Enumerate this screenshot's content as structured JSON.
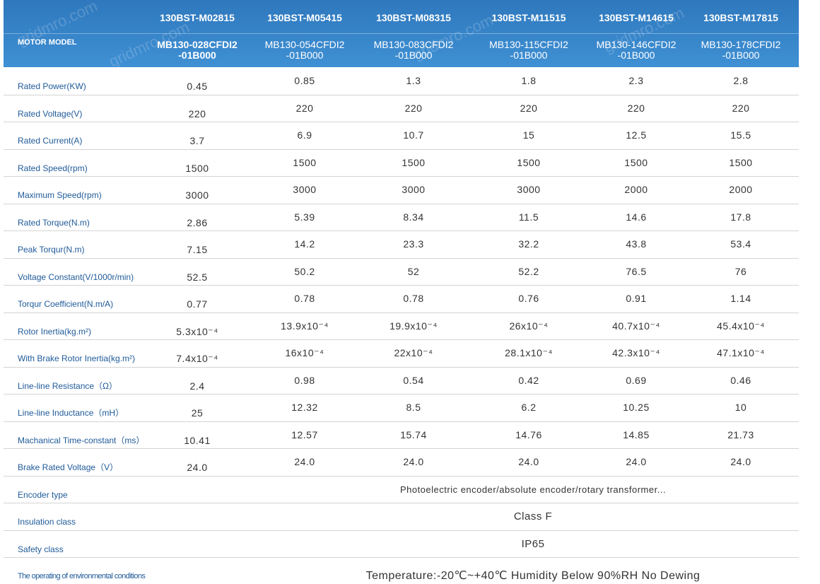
{
  "watermark": "gridmro.com",
  "header": {
    "label": "MOTOR MODEL",
    "models": [
      "130BST-M02815",
      "130BST-M05415",
      "130BST-M08315",
      "130BST-M11515",
      "130BST-M14615",
      "130BST-M17815"
    ],
    "codes": [
      "MB130-028CFDI2\n-01B000",
      "MB130-054CFDI2\n-01B000",
      "MB130-083CFDI2\n-01B000",
      "MB130-115CFDI2\n-01B000",
      "MB130-146CFDI2\n-01B000",
      "MB130-178CFDI2\n-01B000"
    ]
  },
  "rows": [
    {
      "label": "Rated Power(KW)",
      "values": [
        "0.45",
        "0.85",
        "1.3",
        "1.8",
        "2.3",
        "2.8"
      ]
    },
    {
      "label": "Rated Voltage(V)",
      "values": [
        "220",
        "220",
        "220",
        "220",
        "220",
        "220"
      ]
    },
    {
      "label": "Rated Current(A)",
      "values": [
        "3.7",
        "6.9",
        "10.7",
        "15",
        "12.5",
        "15.5"
      ]
    },
    {
      "label": "Rated Speed(rpm)",
      "values": [
        "1500",
        "1500",
        "1500",
        "1500",
        "1500",
        "1500"
      ]
    },
    {
      "label": "Maximum Speed(rpm)",
      "values": [
        "3000",
        "3000",
        "3000",
        "3000",
        "2000",
        "2000"
      ]
    },
    {
      "label": "Rated Torque(N.m)",
      "values": [
        "2.86",
        "5.39",
        "8.34",
        "11.5",
        "14.6",
        "17.8"
      ]
    },
    {
      "label": "Peak Torqur(N.m)",
      "values": [
        "7.15",
        "14.2",
        "23.3",
        "32.2",
        "43.8",
        "53.4"
      ]
    },
    {
      "label": "Voltage Constant(V/1000r/min)",
      "values": [
        "52.5",
        "50.2",
        "52",
        "52.2",
        "76.5",
        "76"
      ]
    },
    {
      "label": "Torqur Coefficient(N.m/A)",
      "values": [
        "0.77",
        "0.78",
        "0.78",
        "0.76",
        "0.91",
        "1.14"
      ]
    },
    {
      "label": "Rotor Inertia(kg.m²)",
      "values": [
        "5.3x10⁻⁴",
        "13.9x10⁻⁴",
        "19.9x10⁻⁴",
        "26x10⁻⁴",
        "40.7x10⁻⁴",
        "45.4x10⁻⁴"
      ]
    },
    {
      "label": "With Brake Rotor Inertia(kg.m²)",
      "values": [
        "7.4x10⁻⁴",
        "16x10⁻⁴",
        "22x10⁻⁴",
        "28.1x10⁻⁴",
        "42.3x10⁻⁴",
        "47.1x10⁻⁴"
      ]
    },
    {
      "label": "Line-line Resistance（Ω）",
      "values": [
        "2.4",
        "0.98",
        "0.54",
        "0.42",
        "0.69",
        "0.46"
      ]
    },
    {
      "label": "Line-line Inductance（mH）",
      "values": [
        "25",
        "12.32",
        "8.5",
        "6.2",
        "10.25",
        "10"
      ]
    },
    {
      "label": "Machanical Time-constant（ms）",
      "values": [
        "10.41",
        "12.57",
        "15.74",
        "14.76",
        "14.85",
        "21.73"
      ]
    },
    {
      "label": "Brake Rated Voltage（V）",
      "values": [
        "24.0",
        "24.0",
        "24.0",
        "24.0",
        "24.0",
        "24.0"
      ]
    }
  ],
  "notes": [
    {
      "label": "Encoder type",
      "value": "Photoelectric encoder/absolute encoder/rotary transformer..."
    },
    {
      "label": "Insulation class",
      "value": "Class F"
    },
    {
      "label": "Safety class",
      "value": "IP65"
    },
    {
      "label": "The operating of environmental conditions",
      "value": "Temperature:-20℃~+40℃  Humidity Below 90%RH No Dewing"
    }
  ]
}
